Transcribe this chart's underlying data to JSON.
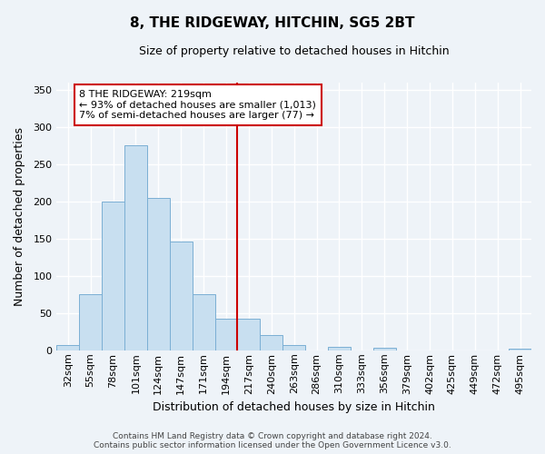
{
  "title": "8, THE RIDGEWAY, HITCHIN, SG5 2BT",
  "subtitle": "Size of property relative to detached houses in Hitchin",
  "xlabel": "Distribution of detached houses by size in Hitchin",
  "ylabel": "Number of detached properties",
  "bar_labels": [
    "32sqm",
    "55sqm",
    "78sqm",
    "101sqm",
    "124sqm",
    "147sqm",
    "171sqm",
    "194sqm",
    "217sqm",
    "240sqm",
    "263sqm",
    "286sqm",
    "310sqm",
    "333sqm",
    "356sqm",
    "379sqm",
    "402sqm",
    "425sqm",
    "449sqm",
    "472sqm",
    "495sqm"
  ],
  "bar_values": [
    7,
    75,
    200,
    275,
    204,
    146,
    75,
    42,
    42,
    20,
    7,
    0,
    4,
    0,
    3,
    0,
    0,
    0,
    0,
    0,
    2
  ],
  "bar_color": "#c8dff0",
  "bar_edge_color": "#7bafd4",
  "ylim": [
    0,
    360
  ],
  "yticks": [
    0,
    50,
    100,
    150,
    200,
    250,
    300,
    350
  ],
  "vline_index": 8,
  "vline_color": "#cc0000",
  "annotation_title": "8 THE RIDGEWAY: 219sqm",
  "annotation_line1": "← 93% of detached houses are smaller (1,013)",
  "annotation_line2": "7% of semi-detached houses are larger (77) →",
  "annotation_box_color": "#ffffff",
  "annotation_box_edge": "#cc0000",
  "footer_line1": "Contains HM Land Registry data © Crown copyright and database right 2024.",
  "footer_line2": "Contains public sector information licensed under the Open Government Licence v3.0.",
  "bg_color": "#eef3f8",
  "grid_color": "#ffffff",
  "title_fontsize": 11,
  "subtitle_fontsize": 9,
  "ylabel_fontsize": 9,
  "xlabel_fontsize": 9,
  "tick_fontsize": 8,
  "footer_fontsize": 6.5,
  "annotation_fontsize": 8
}
